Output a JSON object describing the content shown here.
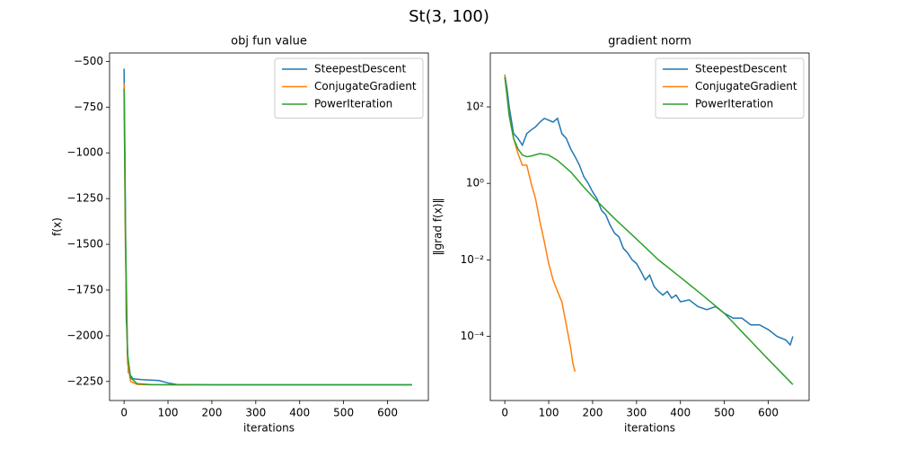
{
  "figure_title": "St(3, 100)",
  "chart_data": [
    {
      "type": "line",
      "title": "obj fun value",
      "x_label": "iterations",
      "y_label": "f(x)",
      "xlim": [
        -33,
        693
      ],
      "ylim": [
        -2354,
        -454
      ],
      "yscale": "linear",
      "legend": "upper right",
      "xticks": [
        0,
        100,
        200,
        300,
        400,
        500,
        600
      ],
      "yticks": [
        {
          "value": -500,
          "label": "−500"
        },
        {
          "value": -750,
          "label": "−750"
        },
        {
          "value": -1000,
          "label": "−1000"
        },
        {
          "value": -1250,
          "label": "−1250"
        },
        {
          "value": -1500,
          "label": "−1500"
        },
        {
          "value": -1750,
          "label": "−1750"
        },
        {
          "value": -2000,
          "label": "−2000"
        },
        {
          "value": -2250,
          "label": "−2250"
        }
      ],
      "series": [
        {
          "name": "SteepestDescent",
          "color": "#1f77b4",
          "x": [
            0,
            2,
            5,
            10,
            20,
            40,
            80,
            100,
            120,
            200,
            400,
            656
          ],
          "values": [
            -540,
            -1000,
            -1900,
            -2200,
            -2235,
            -2240,
            -2245,
            -2258,
            -2266,
            -2268,
            -2268,
            -2268
          ]
        },
        {
          "name": "ConjugateGradient",
          "color": "#ff7f0e",
          "x": [
            0,
            3,
            8,
            15,
            30,
            60,
            160
          ],
          "values": [
            -620,
            -1500,
            -2150,
            -2250,
            -2266,
            -2268,
            -2268
          ]
        },
        {
          "name": "PowerIteration",
          "color": "#2ca02c",
          "x": [
            0,
            3,
            8,
            15,
            30,
            60,
            120,
            656
          ],
          "values": [
            -650,
            -1400,
            -2100,
            -2230,
            -2262,
            -2267,
            -2268,
            -2268
          ]
        }
      ]
    },
    {
      "type": "line",
      "title": "gradient norm",
      "x_label": "iterations",
      "y_label": "‖grad f(x)‖",
      "xlim": [
        -33,
        693
      ],
      "ylim": [
        2.1e-06,
        2570
      ],
      "yscale": "log",
      "legend": "upper right",
      "xticks": [
        0,
        100,
        200,
        300,
        400,
        500,
        600
      ],
      "yticks": [
        {
          "value": 100,
          "label": "10²"
        },
        {
          "value": 1,
          "label": "10⁰"
        },
        {
          "value": 0.01,
          "label": "10⁻²"
        },
        {
          "value": 0.0001,
          "label": "10⁻⁴"
        }
      ],
      "series": [
        {
          "name": "SteepestDescent",
          "color": "#1f77b4",
          "x": [
            0,
            5,
            10,
            20,
            30,
            40,
            50,
            60,
            70,
            80,
            90,
            100,
            110,
            120,
            130,
            140,
            150,
            160,
            170,
            180,
            190,
            200,
            210,
            220,
            230,
            240,
            250,
            260,
            270,
            280,
            290,
            300,
            310,
            320,
            330,
            340,
            350,
            360,
            370,
            380,
            390,
            400,
            420,
            440,
            460,
            480,
            500,
            520,
            540,
            560,
            580,
            600,
            620,
            640,
            650,
            656
          ],
          "values": [
            700,
            300,
            100,
            20,
            15,
            10,
            20,
            25,
            30,
            40,
            50,
            45,
            40,
            50,
            20,
            15,
            8,
            5,
            3,
            1.5,
            1,
            0.6,
            0.4,
            0.2,
            0.15,
            0.08,
            0.05,
            0.04,
            0.02,
            0.015,
            0.01,
            0.008,
            0.005,
            0.003,
            0.004,
            0.002,
            0.0015,
            0.0012,
            0.0015,
            0.001,
            0.0012,
            0.0008,
            0.0009,
            0.0006,
            0.0005,
            0.0006,
            0.0004,
            0.0003,
            0.0003,
            0.0002,
            0.0002,
            0.00015,
            0.0001,
            8e-05,
            6e-05,
            0.0001
          ]
        },
        {
          "name": "ConjugateGradient",
          "color": "#ff7f0e",
          "x": [
            0,
            5,
            10,
            20,
            30,
            40,
            50,
            60,
            70,
            80,
            90,
            100,
            110,
            120,
            130,
            140,
            150,
            155,
            160
          ],
          "values": [
            700,
            200,
            60,
            15,
            6,
            3,
            3,
            1,
            0.4,
            0.1,
            0.03,
            0.008,
            0.003,
            0.0015,
            0.0008,
            0.0002,
            5e-05,
            2e-05,
            1.2e-05
          ]
        },
        {
          "name": "PowerIteration",
          "color": "#2ca02c",
          "x": [
            0,
            5,
            10,
            20,
            30,
            40,
            50,
            60,
            80,
            100,
            120,
            150,
            180,
            200,
            250,
            300,
            350,
            400,
            450,
            500,
            550,
            600,
            656
          ],
          "values": [
            600,
            200,
            60,
            15,
            8,
            5.5,
            5,
            5.2,
            6,
            5.5,
            4,
            2,
            0.8,
            0.45,
            0.12,
            0.035,
            0.01,
            0.0035,
            0.0012,
            0.0004,
            0.0001,
            2.5e-05,
            5.5e-06
          ]
        }
      ]
    }
  ]
}
